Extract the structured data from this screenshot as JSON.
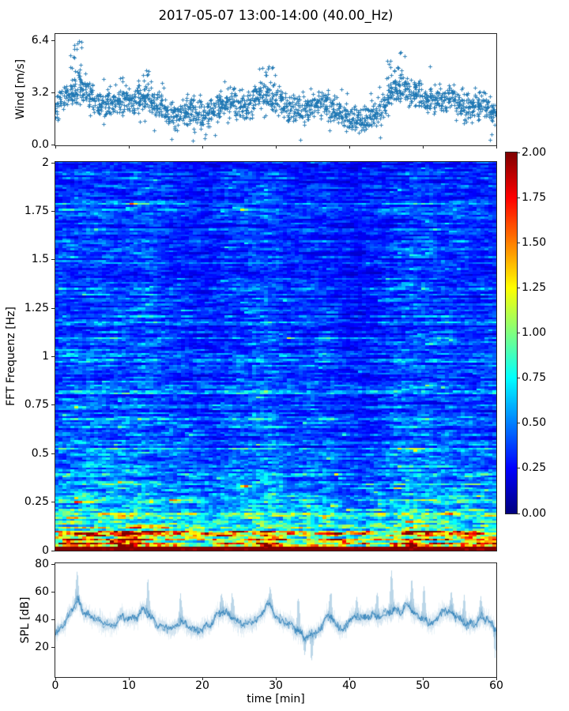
{
  "figure": {
    "title": "2017-05-07 13:00-14:00 (40.00_Hz)",
    "background": "#ffffff"
  },
  "chart_data": [
    {
      "type": "scatter",
      "name": "wind-speed",
      "ylabel": "Wind [m/s]",
      "marker": "+",
      "color": "#1f77b4",
      "xlim": [
        0,
        60
      ],
      "ylim": [
        0,
        6.86
      ],
      "ytick_values": [
        0.0,
        3.2,
        6.4
      ],
      "ytick_labels": [
        "0.0",
        "3.2",
        "6.4"
      ],
      "xtick_values": [
        0,
        10,
        20,
        30,
        40,
        50,
        60
      ],
      "n_points": 1800,
      "mean_t": [
        0,
        2,
        4,
        6,
        8,
        10,
        12,
        14,
        16,
        18,
        20,
        22,
        24,
        26,
        28,
        30,
        32,
        34,
        36,
        38,
        40,
        42,
        44,
        46,
        48,
        50,
        52,
        54,
        56,
        58,
        60
      ],
      "mean_v": [
        2.3,
        3.2,
        3.4,
        2.5,
        2.7,
        2.8,
        3.1,
        2.4,
        1.9,
        2.1,
        1.8,
        2.3,
        2.7,
        2.5,
        3.1,
        2.9,
        2.3,
        2.2,
        2.6,
        2.3,
        1.7,
        1.5,
        2.0,
        3.3,
        3.4,
        3.0,
        2.7,
        2.9,
        2.4,
        2.5,
        1.9
      ],
      "noise_std": 0.6,
      "spikes": [
        {
          "t": 3.2,
          "v": 6.4
        },
        {
          "t": 2.6,
          "v": 5.9
        },
        {
          "t": 12.4,
          "v": 4.6
        },
        {
          "t": 29.0,
          "v": 4.85
        },
        {
          "t": 45.6,
          "v": 5.2
        },
        {
          "t": 47.0,
          "v": 5.7
        }
      ]
    },
    {
      "type": "heatmap",
      "name": "fft-spectrogram",
      "ylabel": "FFT Frequenz [Hz]",
      "xlim": [
        0,
        60
      ],
      "ylim": [
        0,
        2
      ],
      "ytick_values": [
        0,
        0.25,
        0.5,
        0.75,
        1,
        1.25,
        1.5,
        1.75,
        2
      ],
      "ytick_labels": [
        "0",
        "0.25",
        "0.5",
        "0.75",
        "1",
        "1.25",
        "1.5",
        "1.75",
        "2"
      ],
      "colormap": "jet",
      "clim": [
        0,
        2
      ],
      "grid_nx": 112,
      "grid_ny": 197,
      "freq_profile_f": [
        0,
        0.02,
        0.05,
        0.1,
        0.15,
        0.22,
        0.3,
        0.45,
        0.6,
        1.0,
        1.5,
        2.0
      ],
      "freq_profile_mean": [
        2.0,
        1.85,
        1.4,
        1.05,
        0.95,
        0.8,
        0.62,
        0.5,
        0.44,
        0.42,
        0.4,
        0.38
      ],
      "col_mod_t": [
        0,
        4,
        8,
        12,
        16,
        20,
        24,
        28,
        32,
        36,
        40,
        44,
        48,
        52,
        56,
        60
      ],
      "col_mod_v": [
        1.12,
        1.08,
        1.05,
        1.12,
        0.95,
        0.85,
        1.0,
        1.12,
        0.92,
        0.98,
        0.78,
        0.88,
        1.12,
        1.02,
        0.98,
        0.95
      ]
    },
    {
      "type": "line",
      "name": "sound-pressure-level",
      "ylabel": "SPL [dB]",
      "xlabel": "time [min]",
      "color": "#1f77b4",
      "xlim": [
        0,
        60
      ],
      "ylim": [
        -2,
        80.6
      ],
      "ytick_values": [
        20,
        40,
        60,
        80
      ],
      "ytick_labels": [
        "20",
        "40",
        "60",
        "80"
      ],
      "xtick_values": [
        0,
        10,
        20,
        30,
        40,
        50,
        60
      ],
      "xtick_labels": [
        "0",
        "10",
        "20",
        "30",
        "40",
        "50",
        "60"
      ],
      "mean_t": [
        0,
        1,
        2,
        3,
        4,
        5,
        6,
        7,
        8,
        9,
        10,
        11,
        12,
        13,
        14,
        15,
        16,
        17,
        18,
        19,
        20,
        21,
        22,
        23,
        24,
        25,
        26,
        27,
        28,
        29,
        30,
        31,
        32,
        33,
        34,
        35,
        36,
        37,
        38,
        39,
        40,
        41,
        42,
        43,
        44,
        45,
        46,
        47,
        48,
        49,
        50,
        51,
        52,
        53,
        54,
        55,
        56,
        57,
        58,
        59,
        60
      ],
      "mean_v": [
        30,
        38,
        46,
        52,
        44,
        40,
        38,
        39,
        37,
        42,
        40,
        39,
        47,
        45,
        36,
        34,
        33,
        36,
        35,
        34,
        34,
        36,
        43,
        43,
        41,
        39,
        37,
        39,
        43,
        48,
        42,
        40,
        37,
        32,
        27,
        26,
        32,
        44,
        38,
        34,
        38,
        39,
        41,
        44,
        42,
        46,
        46,
        43,
        50,
        44,
        41,
        39,
        40,
        44,
        44,
        40,
        37,
        39,
        41,
        37,
        32
      ],
      "envelope_db": 9,
      "peaks": [
        {
          "t": 2.9,
          "v": 76
        },
        {
          "t": 12.6,
          "v": 68
        },
        {
          "t": 17.0,
          "v": 57
        },
        {
          "t": 22.6,
          "v": 60
        },
        {
          "t": 24.1,
          "v": 60
        },
        {
          "t": 29.3,
          "v": 64
        },
        {
          "t": 33.0,
          "v": 56
        },
        {
          "t": 37.4,
          "v": 62
        },
        {
          "t": 41.0,
          "v": 55
        },
        {
          "t": 43.8,
          "v": 59
        },
        {
          "t": 45.7,
          "v": 76
        },
        {
          "t": 48.5,
          "v": 71
        },
        {
          "t": 50.1,
          "v": 63
        },
        {
          "t": 53.9,
          "v": 61
        },
        {
          "t": 55.6,
          "v": 57
        },
        {
          "t": 57.8,
          "v": 57
        }
      ],
      "dips": [
        {
          "t": 33.9,
          "v": 14
        },
        {
          "t": 34.8,
          "v": 8
        },
        {
          "t": 59.8,
          "v": 13
        }
      ]
    }
  ],
  "colorbar": {
    "colormap": "jet",
    "vmin": 0,
    "vmax": 2,
    "tick_values": [
      0,
      0.25,
      0.5,
      0.75,
      1,
      1.25,
      1.5,
      1.75,
      2
    ],
    "tick_labels": [
      "0.00",
      "0.25",
      "0.50",
      "0.75",
      "1.00",
      "1.25",
      "1.50",
      "1.75",
      "2.00"
    ]
  }
}
